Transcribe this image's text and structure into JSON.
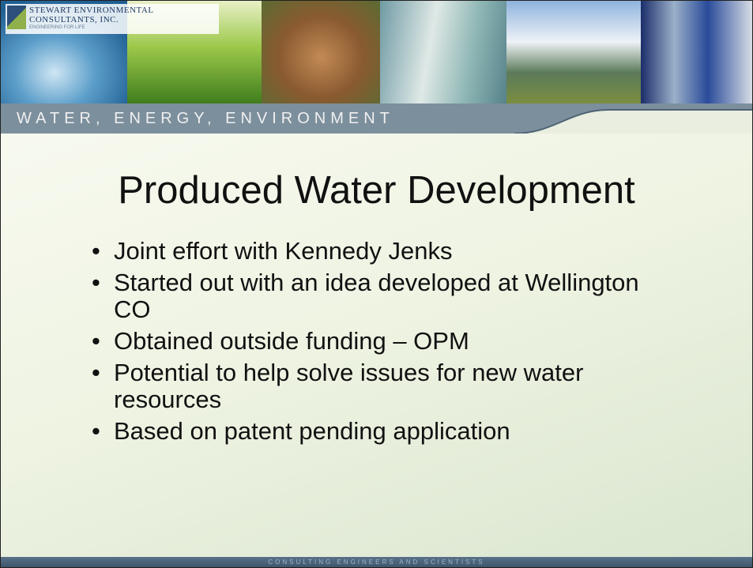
{
  "header": {
    "company": [
      "STEWART ENVIRONMENTAL",
      "CONSULTANTS, INC.",
      "ENGINEERING FOR LIFE"
    ],
    "tagline": "WATER, ENERGY, ENVIRONMENT"
  },
  "slide": {
    "title": "Produced Water Development",
    "bullets": [
      "Joint effort with Kennedy Jenks",
      "Started out with an idea developed at Wellington CO",
      "Obtained outside funding – OPM",
      "Potential to help solve issues for new water resources",
      "Based on patent pending application"
    ]
  },
  "footer": {
    "text": "CONSULTING ENGINEERS AND SCIENTISTS"
  }
}
